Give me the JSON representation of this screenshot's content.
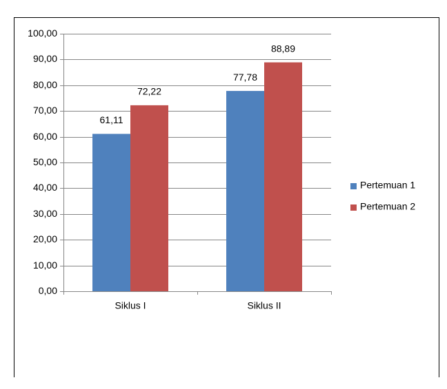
{
  "chart_data": {
    "type": "bar",
    "categories": [
      "Siklus I",
      "Siklus II"
    ],
    "series": [
      {
        "name": "Pertemuan 1",
        "color": "#4f81bd",
        "values": [
          61.11,
          77.78
        ],
        "value_labels": [
          "61,11",
          "77,78"
        ]
      },
      {
        "name": "Pertemuan 2",
        "color": "#c0504d",
        "values": [
          72.22,
          88.89
        ],
        "value_labels": [
          "72,22",
          "88,89"
        ]
      }
    ],
    "ylim": [
      0,
      100
    ],
    "yticks": [
      {
        "value": 0,
        "label": "0,00"
      },
      {
        "value": 10,
        "label": "10,00"
      },
      {
        "value": 20,
        "label": "20,00"
      },
      {
        "value": 30,
        "label": "30,00"
      },
      {
        "value": 40,
        "label": "40,00"
      },
      {
        "value": 50,
        "label": "50,00"
      },
      {
        "value": 60,
        "label": "60,00"
      },
      {
        "value": 70,
        "label": "70,00"
      },
      {
        "value": 80,
        "label": "80,00"
      },
      {
        "value": 90,
        "label": "90,00"
      },
      {
        "value": 100,
        "label": "100,00"
      }
    ],
    "grid": true,
    "legend": "right"
  }
}
